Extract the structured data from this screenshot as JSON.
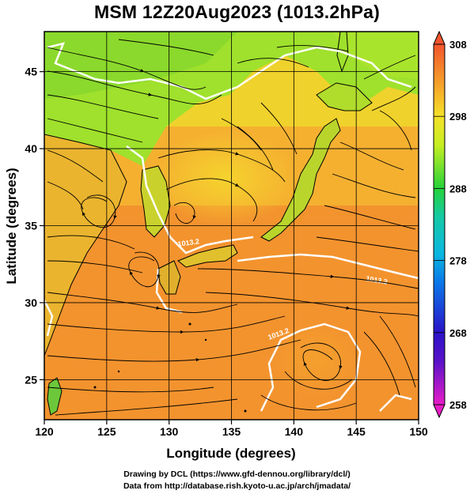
{
  "title": "MSM 12Z20Aug2023 (1013.2hPa)",
  "chart_data": {
    "type": "heatmap",
    "title": "MSM 12Z20Aug2023 (1013.2hPa)",
    "xlabel": "Longitude (degrees)",
    "ylabel": "Latitude  (degrees)",
    "xlim": [
      120,
      150
    ],
    "ylim": [
      22.4,
      47.6
    ],
    "x_ticks": [
      "120",
      "125",
      "130",
      "135",
      "140",
      "145",
      "150"
    ],
    "y_ticks": [
      "25",
      "30",
      "35",
      "40",
      "45"
    ],
    "grid": true,
    "colorbar": {
      "range": [
        258,
        308
      ],
      "tick_labels": [
        "308",
        "298",
        "288",
        "278",
        "268",
        "258"
      ],
      "colors": [
        "#e81dc8",
        "#2b13c8",
        "#0a9cf0",
        "#16c9a6",
        "#25d23a",
        "#c6ee22",
        "#f5e12a",
        "#f59a2a",
        "#f2552e"
      ]
    },
    "field_colors": {
      "ocean_south": "#f08a2e",
      "ocean_mid": "#f5a630",
      "sea_of_japan": "#f6cc2f",
      "north_land": "#9fe12c",
      "north_sea": "#c4ea2a",
      "land": "#6cc83a"
    },
    "contour_labels": [
      "1013.2",
      "1013.2",
      "1013.2"
    ]
  },
  "credits": {
    "line1": "Drawing by DCL (https://www.gfd-dennou.org/library/dcl/)",
    "line2": "Data from http://database.rish.kyoto-u.ac.jp/arch/jmadata/"
  }
}
